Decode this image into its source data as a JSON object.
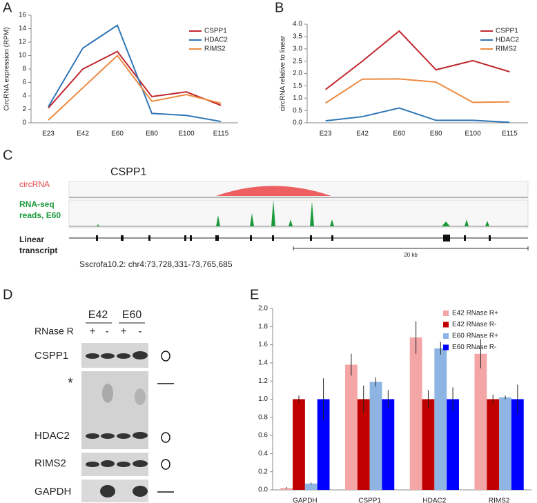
{
  "chart_data": [
    {
      "type": "line",
      "panel_label": "A",
      "y_label": "CircRNA expression (RPM)",
      "categories": [
        "E23",
        "E42",
        "E60",
        "E80",
        "E100",
        "E115"
      ],
      "series": [
        {
          "name": "CSPP1",
          "color": "#c0262d",
          "values": [
            2.2,
            8.0,
            10.6,
            3.9,
            4.6,
            2.6
          ]
        },
        {
          "name": "HDAC2",
          "color": "#2e75b6",
          "values": [
            2.4,
            11.1,
            14.5,
            1.4,
            1.1,
            0.2
          ]
        },
        {
          "name": "RIMS2",
          "color": "#ed8a3f",
          "values": [
            0.4,
            5.2,
            10.0,
            3.2,
            4.2,
            2.9
          ]
        }
      ],
      "ylim": [
        0,
        16
      ],
      "yticks": [
        0,
        2,
        4,
        6,
        8,
        10,
        12,
        14,
        16
      ],
      "legend": "upper right"
    },
    {
      "type": "line",
      "panel_label": "B",
      "y_label": "circRNA relative to linear",
      "categories": [
        "E23",
        "E42",
        "E60",
        "E80",
        "E100",
        "E115"
      ],
      "series": [
        {
          "name": "CSPP1",
          "color": "#c0262d",
          "values": [
            1.35,
            2.5,
            3.72,
            2.15,
            2.52,
            2.07
          ]
        },
        {
          "name": "HDAC2",
          "color": "#2e75b6",
          "values": [
            0.08,
            0.25,
            0.6,
            0.1,
            0.1,
            0.02
          ]
        },
        {
          "name": "RIMS2",
          "color": "#ed8a3f",
          "values": [
            0.8,
            1.77,
            1.78,
            1.65,
            0.83,
            0.85
          ]
        }
      ],
      "ylim": [
        0,
        4
      ],
      "yticks": [
        {
          "value": 0,
          "label": "0.0"
        },
        0.5,
        {
          "value": 1,
          "label": "1.0"
        },
        1.5,
        {
          "value": 2,
          "label": "2.0"
        },
        2.5,
        {
          "value": 3,
          "label": "3.0"
        },
        3.5,
        {
          "value": 4,
          "label": "4.0"
        }
      ],
      "legend": "upper right"
    },
    {
      "type": "bar",
      "panel_label": "E",
      "categories": [
        "GAPDH",
        "CSPP1",
        "HDAC2",
        "RIMS2"
      ],
      "series": [
        {
          "name": "E42 RNase R+",
          "color": "#f4a6a6",
          "values": [
            0.02,
            1.38,
            1.68,
            1.5
          ],
          "errors": [
            0.01,
            0.12,
            0.18,
            0.16
          ]
        },
        {
          "name": "E42 RNase R-",
          "color": "#c00000",
          "values": [
            1.0,
            1.0,
            1.0,
            1.0
          ],
          "errors": [
            0.04,
            0.15,
            0.1,
            0.05
          ]
        },
        {
          "name": "E60 RNase R+",
          "color": "#8db4e2",
          "values": [
            0.07,
            1.19,
            1.56,
            1.02
          ],
          "errors": [
            0.01,
            0.05,
            0.07,
            0.02
          ]
        },
        {
          "name": "E60 RNase R-",
          "color": "#0000ff",
          "values": [
            1.0,
            1.0,
            1.0,
            1.0
          ],
          "errors": [
            0.23,
            0.1,
            0.13,
            0.16
          ]
        }
      ],
      "ylim": [
        0,
        2
      ],
      "yticks": [
        {
          "value": 0,
          "label": "0.0"
        },
        0.2,
        0.4,
        0.6,
        0.8,
        {
          "value": 1,
          "label": "1.0"
        },
        1.2,
        1.4,
        1.6,
        1.8,
        {
          "value": 2,
          "label": "2.0"
        }
      ],
      "legend": "upper right"
    }
  ],
  "genome_panel": {
    "panel_label": "C",
    "gene": "CSPP1",
    "circrna_label": "circRNA",
    "rnaseq_label": [
      "RNA-seq",
      "reads, E60"
    ],
    "transcript_label": [
      "Linear",
      "transcript"
    ],
    "scale_label": "20 kb",
    "coordinates": "Sscrofa10.2: chr4:73,728,331-73,765,685"
  },
  "blot_panel": {
    "panel_label": "D",
    "lanes": [
      "E42",
      "E60"
    ],
    "treatment_label": "RNase R",
    "treatment_signs": [
      "+",
      "-",
      "+",
      "-"
    ],
    "probes": [
      "CSPP1",
      "*",
      "HDAC2",
      "RIMS2",
      "GAPDH"
    ]
  }
}
